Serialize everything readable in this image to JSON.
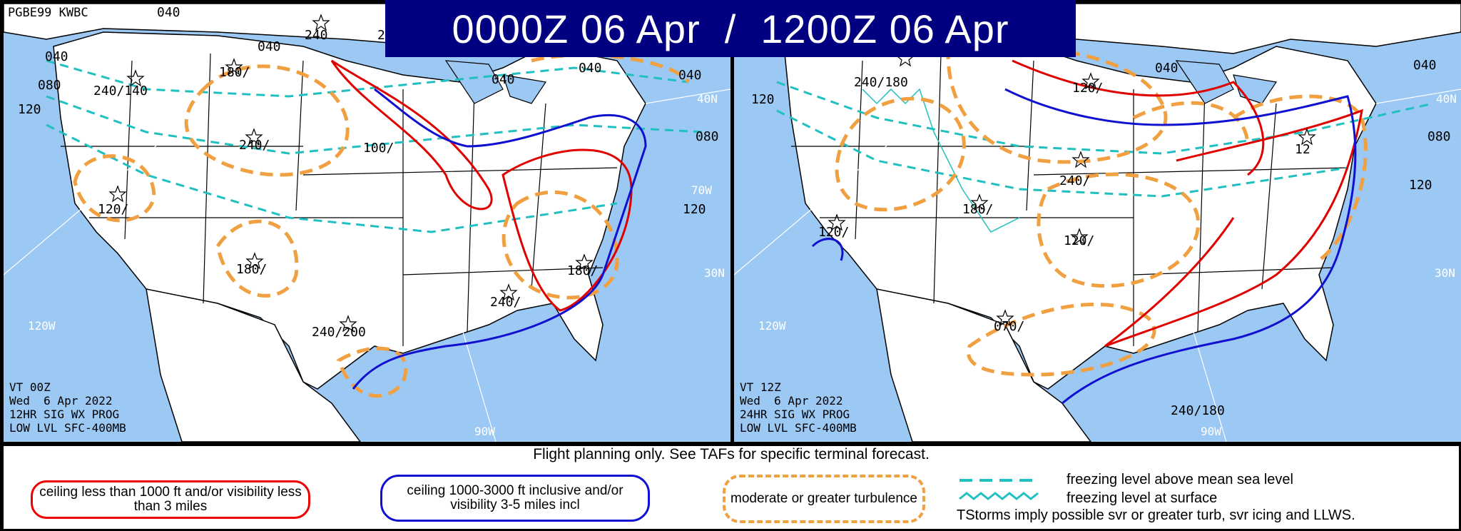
{
  "title": {
    "left_time": "0000Z 06 Apr",
    "separator": "/",
    "right_time": "1200Z 06 Apr"
  },
  "panels": [
    {
      "id": "left",
      "header_code": "PGBE99 KWBC",
      "info_lines": [
        "VT 00Z",
        "Wed  6 Apr 2022",
        "12HR SIG WX PROG",
        "LOW LVL SFC-400MB"
      ],
      "freezing_labels": [
        "040",
        "040",
        "080",
        "120",
        "040",
        "040",
        "040",
        "040",
        "080",
        "120"
      ],
      "turbulence_labels": [
        "240",
        "240/140",
        "180/",
        "240/",
        "120/",
        "100/",
        "180/",
        "240/200",
        "240/",
        "180/",
        "2"
      ],
      "lat_lon_labels": [
        "40N",
        "70W",
        "30N",
        "120W",
        "90W"
      ]
    },
    {
      "id": "right",
      "info_lines": [
        "VT 12Z",
        "Wed  6 Apr 2022",
        "24HR SIG WX PROG",
        "LOW LVL SFC-400MB"
      ],
      "freezing_labels": [
        "120",
        "040",
        "040",
        "080",
        "120"
      ],
      "turbulence_labels": [
        "240/180",
        "120/",
        "240/",
        "180/",
        "120/",
        "120/",
        "070/",
        "240/180",
        "12"
      ],
      "lat_lon_labels": [
        "40N",
        "30N",
        "120W",
        "90W"
      ]
    }
  ],
  "legend": {
    "note": "Flight planning only. See TAFs for specific terminal forecast.",
    "ifr": "ceiling less than 1000 ft and/or visibility less than 3 miles",
    "mvfr": "ceiling 1000-3000 ft inclusive and/or visibility 3-5 miles incl",
    "turbulence": "moderate or greater turbulence",
    "freezing_msl": "freezing level above mean sea level",
    "freezing_sfc": "freezing level at surface",
    "tstorms": "TStorms imply possible svr or greater turb, svr icing and LLWS."
  },
  "colors": {
    "ifr": "#e00000",
    "mvfr": "#1010d0",
    "turbulence": "#f0a040",
    "freezing": "#20c0c0",
    "water": "#9cc8f4",
    "land": "#ffffff",
    "banner": "#000080"
  }
}
